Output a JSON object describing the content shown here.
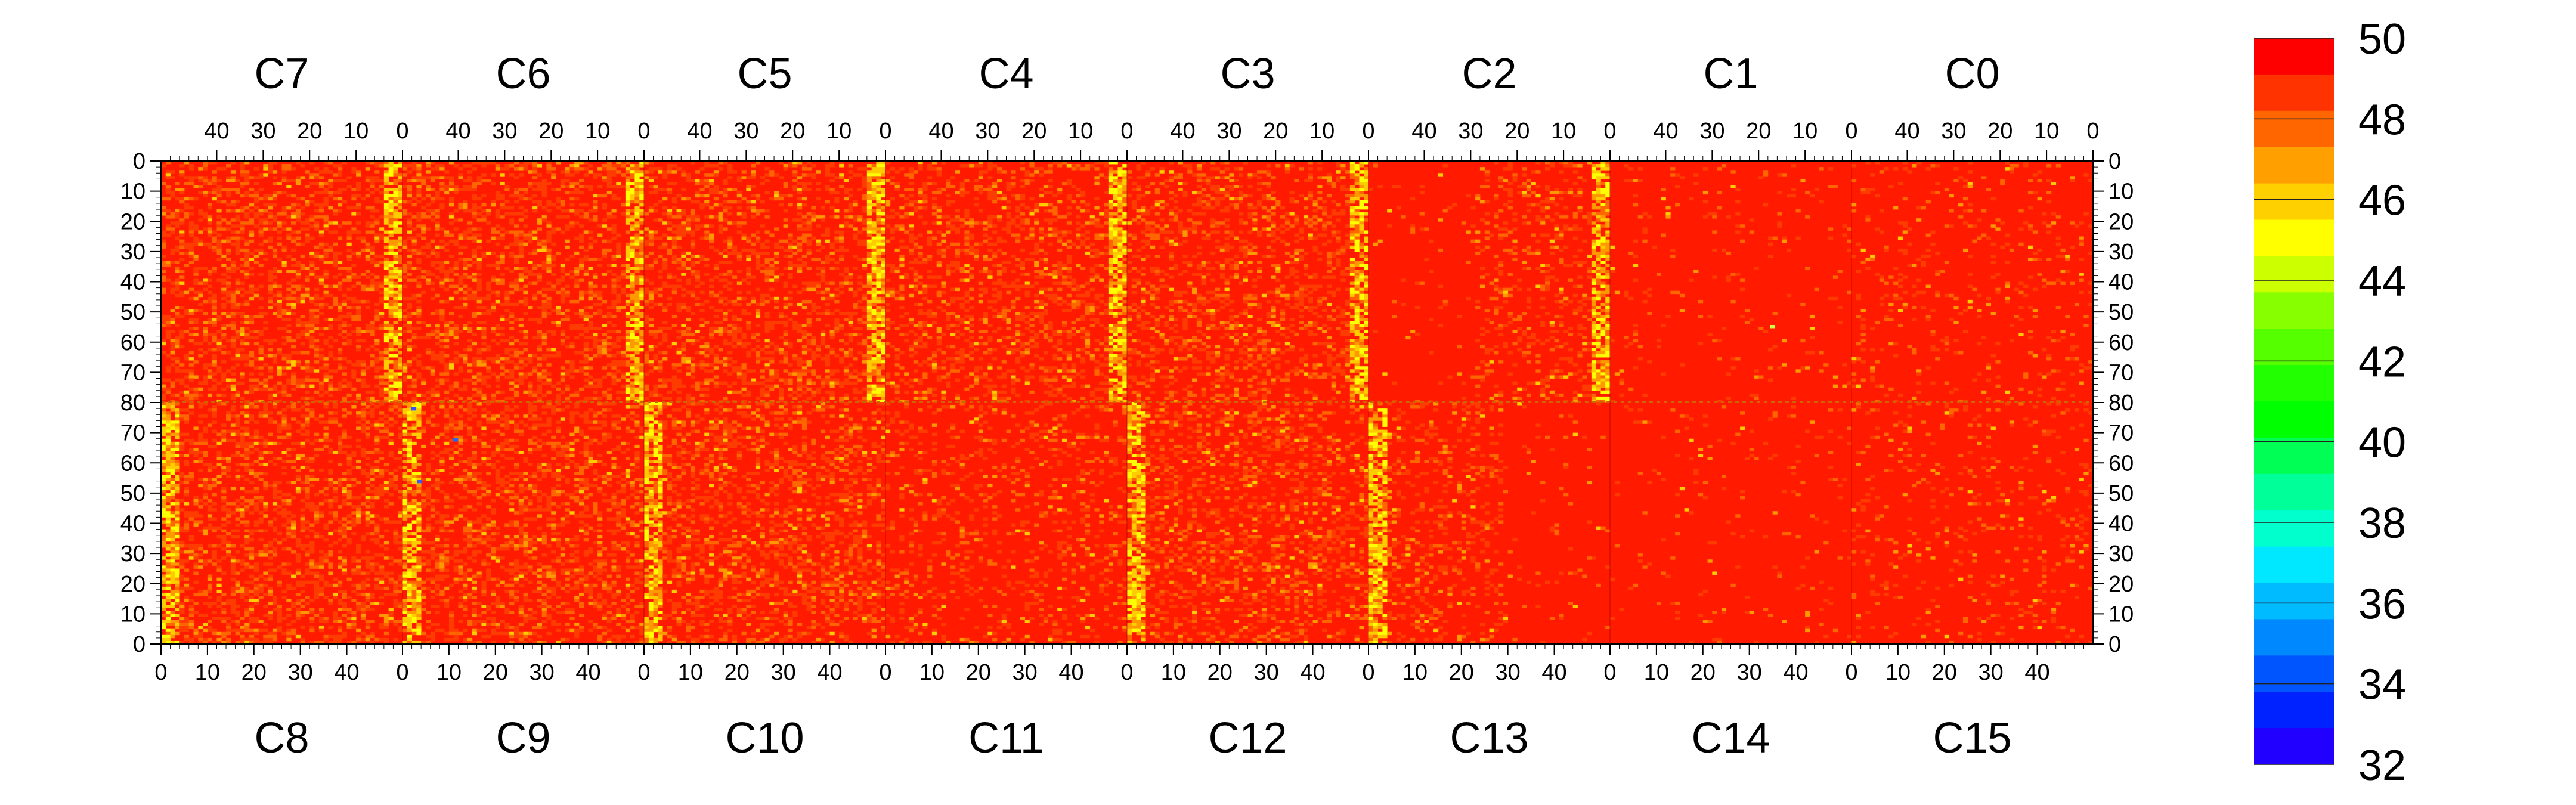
{
  "chart_data": {
    "type": "heatmap",
    "top_chips": [
      "C7",
      "C6",
      "C5",
      "C4",
      "C3",
      "C2",
      "C1",
      "C0"
    ],
    "bottom_chips": [
      "C8",
      "C9",
      "C10",
      "C11",
      "C12",
      "C13",
      "C14",
      "C15"
    ],
    "top_x_ticks": [
      "40",
      "30",
      "20",
      "10",
      "0"
    ],
    "bottom_x_ticks": [
      "0",
      "10",
      "20",
      "30",
      "40"
    ],
    "y_ticks_top_half": [
      "0",
      "10",
      "20",
      "30",
      "40",
      "50",
      "60",
      "70",
      "80"
    ],
    "y_ticks_bottom_half": [
      "70",
      "60",
      "50",
      "40",
      "30",
      "20",
      "10",
      "0"
    ],
    "columns_per_chip": 52,
    "rows_per_half": 80,
    "value_range": [
      32,
      50
    ],
    "colorbar_labels": [
      "50",
      "48",
      "46",
      "44",
      "42",
      "40",
      "38",
      "36",
      "34",
      "32"
    ],
    "colorbar_levels": 20,
    "typical_value": 50,
    "highlight_columns_near": 0,
    "highlight_value_range": [
      46,
      49
    ],
    "colors": {
      "background_cell": "#ff1a00",
      "warm": [
        "#ff3c00",
        "#ff6600",
        "#ff9900",
        "#ffcc00",
        "#ffff00"
      ],
      "colorbar": [
        "#ff0000",
        "#ff3300",
        "#ff6600",
        "#ffa000",
        "#ffd000",
        "#ffff00",
        "#ccff00",
        "#88ff00",
        "#55ff00",
        "#22ff00",
        "#00ff00",
        "#00ff55",
        "#00ff99",
        "#00ffcc",
        "#00e8ff",
        "#00bbff",
        "#0088ff",
        "#0055ff",
        "#0022ff",
        "#2200ff",
        "#6600ff"
      ]
    }
  }
}
